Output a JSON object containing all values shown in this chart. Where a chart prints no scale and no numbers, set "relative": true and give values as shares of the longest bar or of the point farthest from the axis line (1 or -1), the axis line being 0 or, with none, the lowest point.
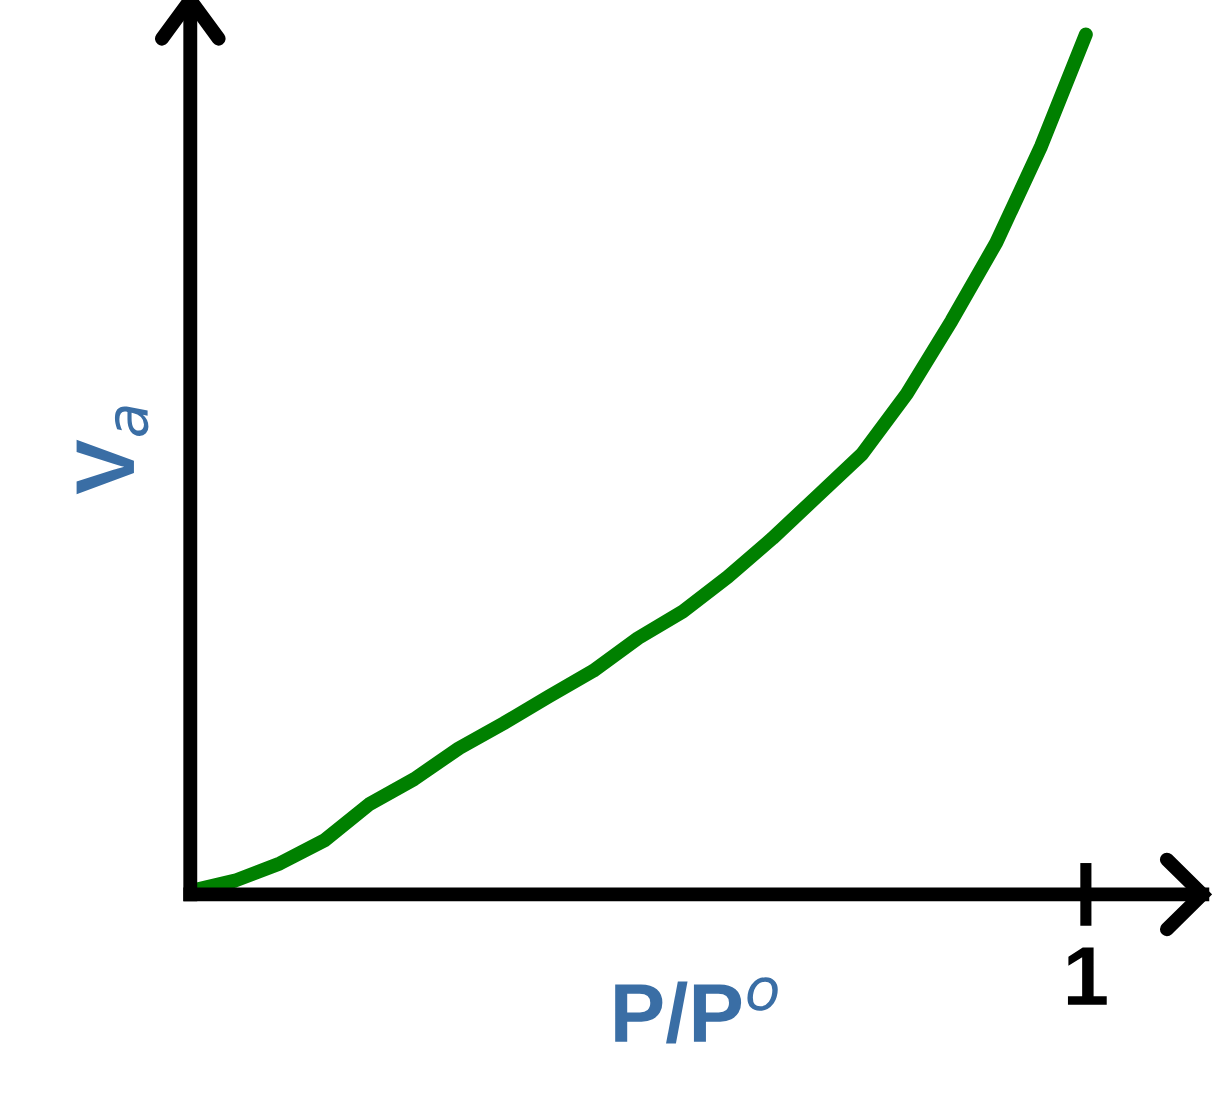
{
  "chart_data": {
    "type": "line",
    "relative": true,
    "xlabel": "P/P$^{o}$",
    "ylabel": "V$_{a}$",
    "categories": [
      null,
      null,
      null,
      null,
      null,
      null,
      null,
      null,
      null,
      null,
      null,
      null,
      null,
      null,
      null,
      null,
      null,
      null,
      null,
      null,
      null
    ],
    "annotations": [
      "1"
    ],
    "legend": false,
    "marker": "none",
    "line_style": "solid",
    "series": [
      {
        "color": "#008000",
        "values": [
          0.004,
          0.016,
          0.036,
          0.063,
          0.105,
          0.134,
          0.17,
          0.199,
          0.23,
          0.26,
          0.298,
          0.329,
          0.369,
          0.414,
          0.463,
          0.512,
          0.582,
          0.667,
          0.758,
          0.87,
          1
        ]
      }
    ]
  }
}
